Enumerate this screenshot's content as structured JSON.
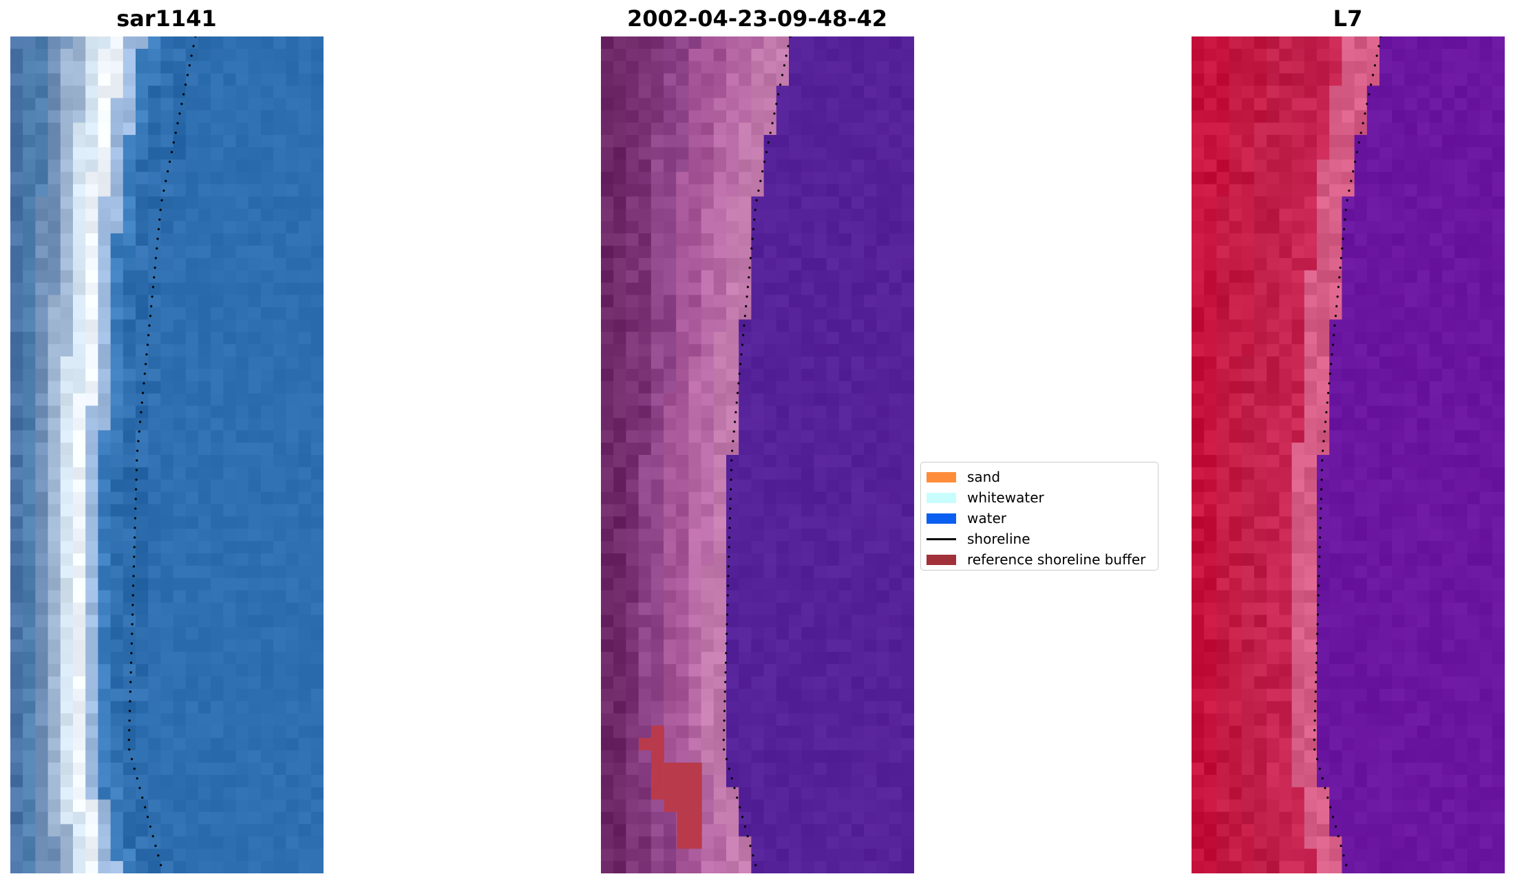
{
  "panels": [
    {
      "title": "sar1141",
      "colormap": "rgb",
      "stripes": [
        "#4a74a8",
        "#4f7fae",
        "#6f8fb7",
        "#9fb6d2",
        "#d6e5f2",
        "#f0f6fb",
        "#9fbbe0",
        "#3b7cbc",
        "#2f6fb0",
        "#2d6dad"
      ],
      "water": "#2e6fb2"
    },
    {
      "title": "2002-04-23-09-48-42",
      "colormap": "index",
      "stripes": [
        "#6e2868",
        "#7a3275",
        "#8d4488",
        "#a65597",
        "#b76aa6",
        "#c27aac"
      ],
      "water": "#56229a"
    },
    {
      "title": "L7",
      "colormap": "false-color",
      "stripes": [
        "#c8123e",
        "#c31a44",
        "#bf1f48",
        "#c72350",
        "#d65e86"
      ],
      "water": "#6b16a0"
    }
  ],
  "legend": {
    "items": [
      {
        "label": "sand",
        "type": "patch",
        "color": "#ff8c3a"
      },
      {
        "label": "whitewater",
        "type": "patch",
        "color": "#c9fdfd"
      },
      {
        "label": "water",
        "type": "patch",
        "color": "#0b5ff0"
      },
      {
        "label": "shoreline",
        "type": "line",
        "color": "#000000"
      },
      {
        "label": "reference shoreline buffer",
        "type": "patch",
        "color": "#a0303a"
      }
    ]
  },
  "buffer_color": "#b93a4a",
  "shoreline_color": "#000000"
}
